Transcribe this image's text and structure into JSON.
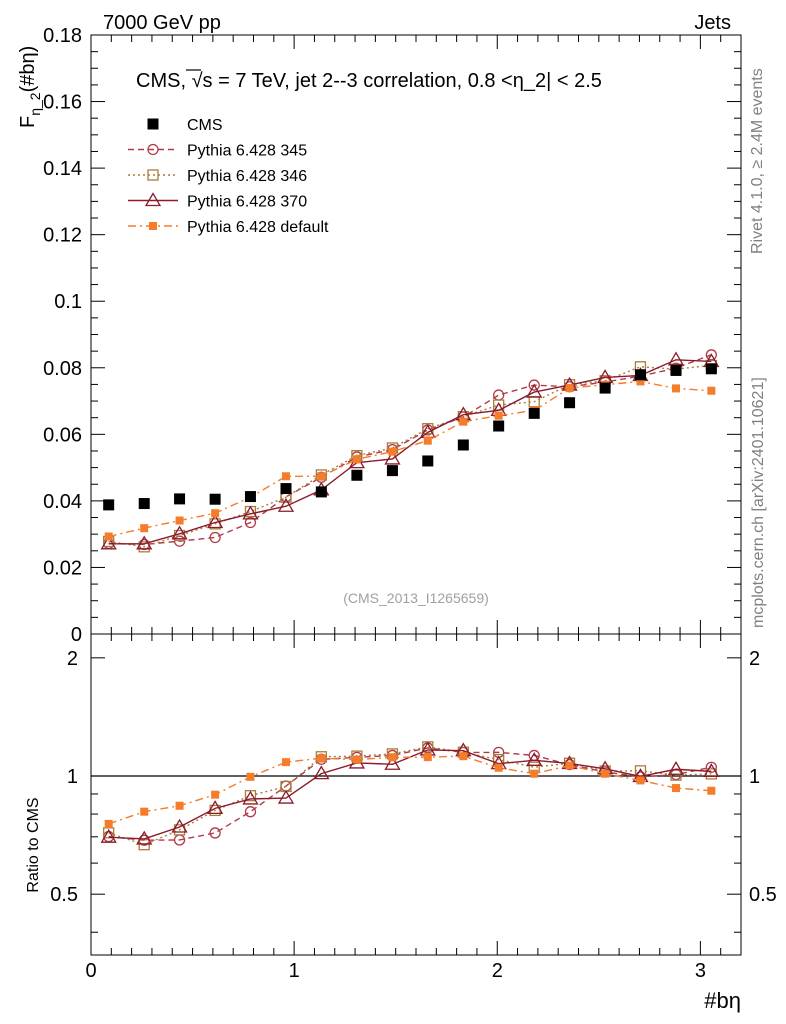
{
  "header": {
    "left": "7000 GeV pp",
    "right": "Jets"
  },
  "side": {
    "rivet": "Rivet 4.1.0, ≥ 2.4M events",
    "mcplots": "mcplots.cern.ch [arXiv:2401.10621]"
  },
  "analysis_id": "(CMS_2013_I1265659)",
  "chart_data": {
    "type": "scatter",
    "title": "CMS, √s = 7 TeV, jet 2--3 correlation, 0.8 <η_2| < 2.5",
    "title_parts": {
      "prefix": "CMS, ",
      "sqrt": "√",
      "rest": "s = 7 TeV, jet 2--3 correlation, 0.8 <η_2| < 2.5"
    },
    "xlabel": "#bη",
    "ylabel": {
      "main": "F",
      "sub": "η_2",
      "rest": "(#bη)"
    },
    "ratio_ylabel": "Ratio to CMS",
    "xlim": [
      0,
      3.2
    ],
    "ylim": [
      0,
      0.18
    ],
    "ratio_ylim": [
      0.35,
      2.3
    ],
    "x_ticks": [
      0,
      1,
      2,
      3
    ],
    "x_tick_labels": [
      "0",
      "1",
      "2",
      "3"
    ],
    "y_ticks": [
      0,
      0.02,
      0.04,
      0.06,
      0.08,
      0.1,
      0.12,
      0.14,
      0.16,
      0.18
    ],
    "y_tick_labels": [
      "0",
      "0.02",
      "0.04",
      "0.06",
      "0.08",
      "0.1",
      "0.12",
      "0.14",
      "0.16",
      "0.18"
    ],
    "ratio_ticks": [
      0.5,
      1,
      2
    ],
    "ratio_tick_labels": [
      "0.5",
      "1",
      "2"
    ],
    "x": [
      0.087,
      0.262,
      0.436,
      0.611,
      0.785,
      0.96,
      1.134,
      1.309,
      1.484,
      1.658,
      1.833,
      2.007,
      2.182,
      2.356,
      2.531,
      2.705,
      2.88,
      3.054
    ],
    "series": [
      {
        "name": "CMS",
        "color": "#000000",
        "marker": "filled-square",
        "line": "none",
        "values": [
          0.0388,
          0.0392,
          0.0406,
          0.0405,
          0.0413,
          0.0437,
          0.0427,
          0.0477,
          0.0491,
          0.052,
          0.0568,
          0.0625,
          0.0663,
          0.0695,
          0.0739,
          0.0779,
          0.0792,
          0.0797
        ]
      },
      {
        "name": "Pythia 6.428 345",
        "color": "#b03a48",
        "marker": "open-circle",
        "line": "dashed",
        "values": [
          0.0272,
          0.0269,
          0.0279,
          0.029,
          0.0335,
          0.0412,
          0.0471,
          0.0532,
          0.0554,
          0.0613,
          0.0652,
          0.0718,
          0.0748,
          0.0743,
          0.0757,
          0.0775,
          0.0799,
          0.0839
        ]
      },
      {
        "name": "Pythia 6.428 346",
        "color": "#a87d3c",
        "marker": "open-square",
        "line": "dotted",
        "values": [
          0.0278,
          0.0262,
          0.0296,
          0.0331,
          0.0368,
          0.0411,
          0.0478,
          0.0536,
          0.0559,
          0.0617,
          0.0653,
          0.0688,
          0.0698,
          0.0749,
          0.0761,
          0.0803,
          0.0796,
          0.0807
        ]
      },
      {
        "name": "Pythia 6.428 370",
        "color": "#8b1a2b",
        "marker": "open-triangle",
        "line": "solid",
        "values": [
          0.0271,
          0.0271,
          0.0301,
          0.0335,
          0.0361,
          0.0384,
          0.0433,
          0.0515,
          0.0526,
          0.0606,
          0.0659,
          0.0672,
          0.0727,
          0.0748,
          0.0771,
          0.0777,
          0.0824,
          0.0819
        ]
      },
      {
        "name": "Pythia 6.428 default",
        "color": "#f47c2a",
        "marker": "filled-square-small",
        "line": "dashdot",
        "values": [
          0.0293,
          0.0318,
          0.0341,
          0.0363,
          0.0411,
          0.0474,
          0.0474,
          0.0525,
          0.0548,
          0.0581,
          0.0638,
          0.0656,
          0.0672,
          0.0739,
          0.0749,
          0.0759,
          0.0738,
          0.0731
        ]
      }
    ]
  }
}
